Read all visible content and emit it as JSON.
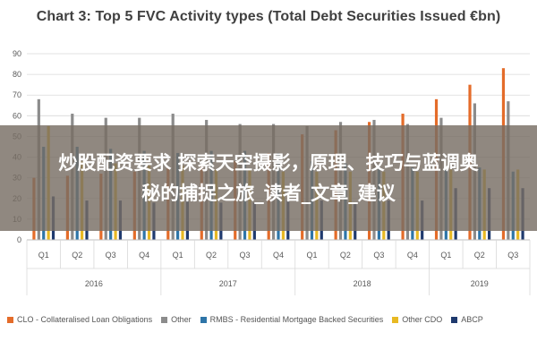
{
  "chart_data": {
    "type": "bar",
    "title": "Chart 3: Top 5 FVC Activity types (Total Debt Securities Issued €bn)",
    "xlabel": "",
    "ylabel": "",
    "ylim": [
      0,
      90
    ],
    "yticks": [
      0,
      10,
      20,
      30,
      40,
      50,
      60,
      70,
      80,
      90
    ],
    "grid": true,
    "legend_position": "bottom",
    "categories": [
      "Q1",
      "Q2",
      "Q3",
      "Q4",
      "Q1",
      "Q2",
      "Q3",
      "Q4",
      "Q1",
      "Q2",
      "Q3",
      "Q4",
      "Q1",
      "Q2",
      "Q3"
    ],
    "groups": [
      {
        "label": "2016",
        "count": 4
      },
      {
        "label": "2017",
        "count": 4
      },
      {
        "label": "2018",
        "count": 4
      },
      {
        "label": "2019",
        "count": 3
      }
    ],
    "series": [
      {
        "name": "CLO - Collateralised Loan Obligations",
        "color": "#E46C2A",
        "values": [
          30,
          31,
          32,
          33,
          35,
          36,
          38,
          42,
          51,
          53,
          57,
          61,
          68,
          75,
          83
        ]
      },
      {
        "name": "Other",
        "color": "#8C8C8C",
        "values": [
          68,
          61,
          59,
          59,
          61,
          58,
          56,
          56,
          55,
          57,
          58,
          56,
          59,
          66,
          67
        ]
      },
      {
        "name": "RMBS - Residential Mortgage Backed Securities",
        "color": "#2E75A8",
        "values": [
          45,
          45,
          44,
          43,
          42,
          43,
          43,
          42,
          38,
          37,
          36,
          35,
          34,
          35,
          33
        ]
      },
      {
        "name": "Other CDO",
        "color": "#E8B923",
        "values": [
          55,
          38,
          37,
          36,
          36,
          34,
          34,
          33,
          33,
          33,
          33,
          33,
          34,
          34,
          34
        ]
      },
      {
        "name": "ABCP",
        "color": "#1F3A6E",
        "values": [
          21,
          19,
          19,
          18,
          19,
          18,
          18,
          19,
          19,
          18,
          19,
          19,
          25,
          25,
          25
        ]
      }
    ]
  },
  "overlay": {
    "line1": "炒股配资要求 探索天空摄影，原理、技巧与蓝调奥",
    "line2": "秘的捕捉之旅_读者_文章_建议"
  }
}
